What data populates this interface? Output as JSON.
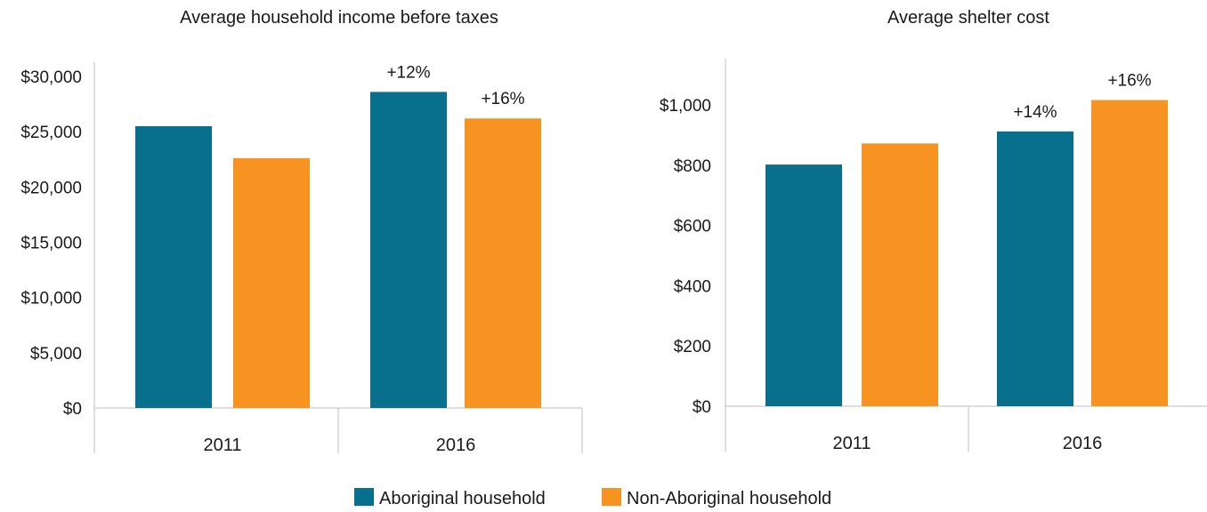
{
  "colors": {
    "aboriginal": "#086F8C",
    "non_aboriginal": "#F79421",
    "axis": "#BFBFBF"
  },
  "legend": [
    {
      "label": "Aboriginal household",
      "color": "#086F8C"
    },
    {
      "label": "Non-Aboriginal household",
      "color": "#F79421"
    }
  ],
  "chart_data": [
    {
      "type": "bar",
      "title": "Average household income before taxes",
      "categories": [
        "2011",
        "2016"
      ],
      "series": [
        {
          "name": "Aboriginal household",
          "values": [
            25500,
            28600
          ],
          "data_labels": [
            "",
            "+12%"
          ]
        },
        {
          "name": "Non-Aboriginal household",
          "values": [
            22600,
            26200
          ],
          "data_labels": [
            "",
            "+16%"
          ]
        }
      ],
      "ylim": [
        0,
        30000
      ],
      "yticks": [
        0,
        5000,
        10000,
        15000,
        20000,
        25000,
        30000
      ],
      "ytick_labels": [
        "$0",
        "$5,000",
        "$10,000",
        "$15,000",
        "$20,000",
        "$25,000",
        "$30,000"
      ],
      "xlabel": "",
      "ylabel": "",
      "grid": false,
      "legend_position": "bottom-center"
    },
    {
      "type": "bar",
      "title": "Average shelter cost",
      "categories": [
        "2011",
        "2016"
      ],
      "series": [
        {
          "name": "Aboriginal household",
          "values": [
            802,
            912
          ],
          "data_labels": [
            "",
            "+14%"
          ]
        },
        {
          "name": "Non-Aboriginal household",
          "values": [
            872,
            1016
          ],
          "data_labels": [
            "",
            "+16%"
          ]
        }
      ],
      "ylim": [
        0,
        1000
      ],
      "yticks": [
        0,
        200,
        400,
        600,
        800,
        1000
      ],
      "ytick_labels": [
        "$0",
        "$200",
        "$400",
        "$600",
        "$800",
        "$1,000"
      ],
      "xlabel": "",
      "ylabel": "",
      "grid": false,
      "legend_position": "bottom-center"
    }
  ]
}
